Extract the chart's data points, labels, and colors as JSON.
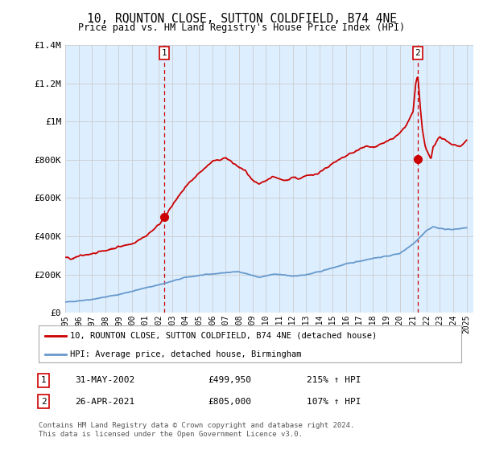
{
  "title": "10, ROUNTON CLOSE, SUTTON COLDFIELD, B74 4NE",
  "subtitle": "Price paid vs. HM Land Registry's House Price Index (HPI)",
  "red_label": "10, ROUNTON CLOSE, SUTTON COLDFIELD, B74 4NE (detached house)",
  "blue_label": "HPI: Average price, detached house, Birmingham",
  "annotation1_date": "31-MAY-2002",
  "annotation1_price": "£499,950",
  "annotation1_hpi": "215% ↑ HPI",
  "annotation2_date": "26-APR-2021",
  "annotation2_price": "£805,000",
  "annotation2_hpi": "107% ↑ HPI",
  "footer": "Contains HM Land Registry data © Crown copyright and database right 2024.\nThis data is licensed under the Open Government Licence v3.0.",
  "red_color": "#cc0000",
  "blue_color": "#6699cc",
  "fill_color": "#ddeeff",
  "ylim": [
    0,
    1400000
  ],
  "yticks": [
    0,
    200000,
    400000,
    600000,
    800000,
    1000000,
    1200000,
    1400000
  ],
  "ytick_labels": [
    "£0",
    "£200K",
    "£400K",
    "£600K",
    "£800K",
    "£1M",
    "£1.2M",
    "£1.4M"
  ],
  "sale1_x": 2002.42,
  "sale1_y": 499950,
  "sale2_x": 2021.33,
  "sale2_y": 805000,
  "xmin": 1995.0,
  "xmax": 2025.5,
  "background_color": "#ffffff",
  "grid_color": "#cccccc"
}
